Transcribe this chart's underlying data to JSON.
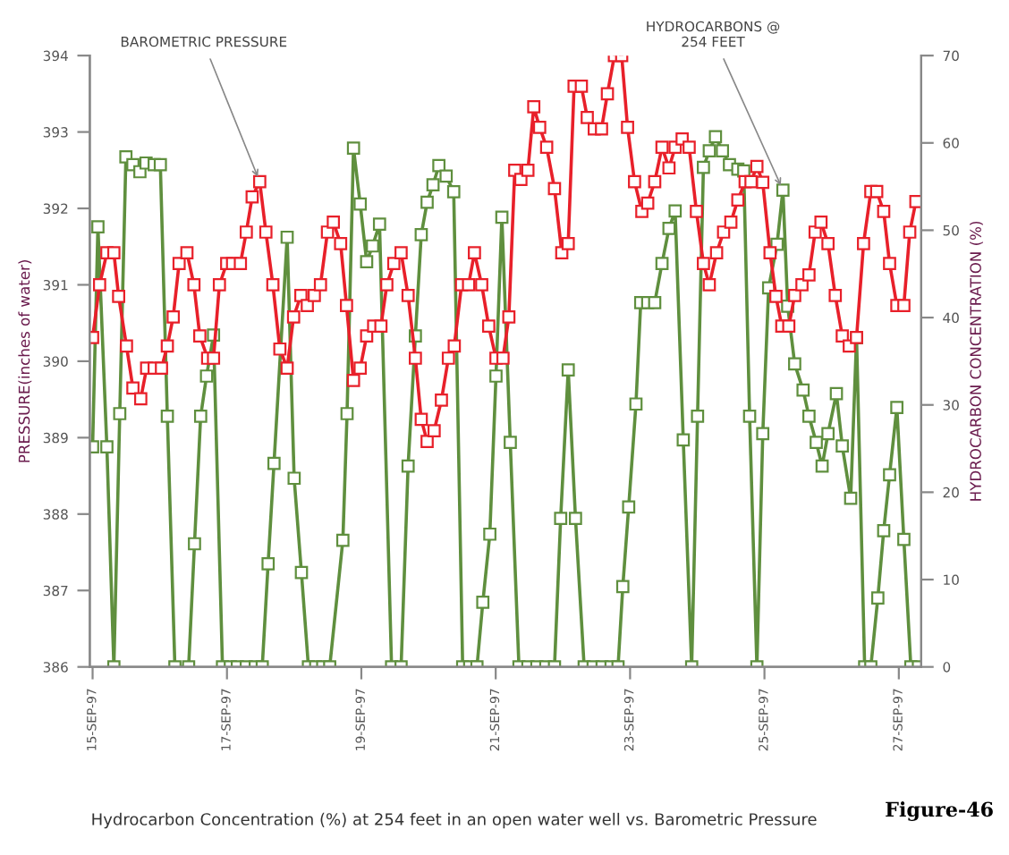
{
  "chart_data": {
    "type": "line",
    "ylabel": "PRESSURE(inches of water)",
    "y2label": "HYDROCARBON CONCENTRATION (%)",
    "xlim": [
      "1997-09-14T23:00",
      "1997-09-27T08:00"
    ],
    "xticks": [
      {
        "value": "1997-09-15",
        "label": "15-SEP-97"
      },
      {
        "value": "1997-09-17",
        "label": "17-SEP-97"
      },
      {
        "value": "1997-09-19",
        "label": "19-SEP-97"
      },
      {
        "value": "1997-09-21",
        "label": "21-SEP-97"
      },
      {
        "value": "1997-09-23",
        "label": "23-SEP-97"
      },
      {
        "value": "1997-09-25",
        "label": "25-SEP-97"
      },
      {
        "value": "1997-09-27",
        "label": "27-SEP-97"
      }
    ],
    "ylim": [
      386,
      394
    ],
    "yticks": [
      386,
      387,
      388,
      389,
      390,
      391,
      392,
      393,
      394
    ],
    "y2lim": [
      0,
      70
    ],
    "y2ticks": [
      0,
      10,
      20,
      30,
      40,
      50,
      60,
      70
    ],
    "grid": false,
    "legend": false,
    "marker": "square",
    "line_style": "solid",
    "series": [
      {
        "color": "#e8202a",
        "x": [
          "1997-09-15T00:00",
          "1997-09-15T02:30",
          "1997-09-15T05:06",
          "1997-09-15T07:36",
          "1997-09-15T09:18",
          "1997-09-15T12:06",
          "1997-09-15T14:24",
          "1997-09-15T17:12",
          "1997-09-15T19:18",
          "1997-09-15T22:00",
          "1997-09-16T00:36",
          "1997-09-16T02:42",
          "1997-09-16T04:48",
          "1997-09-16T06:54",
          "1997-09-16T09:42",
          "1997-09-16T12:12",
          "1997-09-16T14:18",
          "1997-09-16T17:06",
          "1997-09-16T19:12",
          "1997-09-16T21:18",
          "1997-09-16T23:54",
          "1997-09-17T02:00",
          "1997-09-17T04:48",
          "1997-09-17T06:54",
          "1997-09-17T09:00",
          "1997-09-17T11:42",
          "1997-09-17T13:54",
          "1997-09-17T16:24",
          "1997-09-17T18:54",
          "1997-09-17T21:30",
          "1997-09-17T23:48",
          "1997-09-18T02:24",
          "1997-09-18T04:42",
          "1997-09-18T07:12",
          "1997-09-18T09:24",
          "1997-09-18T11:54",
          "1997-09-18T14:00",
          "1997-09-18T16:36",
          "1997-09-18T18:42",
          "1997-09-18T21:12",
          "1997-09-18T23:36",
          "1997-09-19T01:54",
          "1997-09-19T04:24",
          "1997-09-19T07:00",
          "1997-09-19T09:06",
          "1997-09-19T11:36",
          "1997-09-19T14:12",
          "1997-09-19T16:42",
          "1997-09-19T19:18",
          "1997-09-19T21:24",
          "1997-09-19T23:30",
          "1997-09-20T02:00",
          "1997-09-20T04:36",
          "1997-09-20T07:06",
          "1997-09-20T09:12",
          "1997-09-20T11:48",
          "1997-09-20T14:18",
          "1997-09-20T16:24",
          "1997-09-20T19:00",
          "1997-09-20T21:30",
          "1997-09-21T00:06",
          "1997-09-21T02:36",
          "1997-09-21T04:42",
          "1997-09-21T06:48",
          "1997-09-21T09:00",
          "1997-09-21T11:30",
          "1997-09-21T13:36",
          "1997-09-21T15:42",
          "1997-09-21T18:12",
          "1997-09-21T21:00",
          "1997-09-21T23:36",
          "1997-09-22T01:54",
          "1997-09-22T04:00",
          "1997-09-22T06:36",
          "1997-09-22T08:42",
          "1997-09-22T11:12",
          "1997-09-22T13:48",
          "1997-09-22T15:54",
          "1997-09-22T18:24",
          "1997-09-22T21:00",
          "1997-09-22T23:06",
          "1997-09-23T01:36",
          "1997-09-23T04:12",
          "1997-09-23T06:18",
          "1997-09-23T08:48",
          "1997-09-23T11:24",
          "1997-09-23T13:54",
          "1997-09-23T16:06",
          "1997-09-23T18:36",
          "1997-09-23T21:06",
          "1997-09-23T23:42",
          "1997-09-24T02:12",
          "1997-09-24T04:18",
          "1997-09-24T06:54",
          "1997-09-24T09:24",
          "1997-09-24T12:00",
          "1997-09-24T14:30",
          "1997-09-24T17:06",
          "1997-09-24T19:12",
          "1997-09-24T21:18",
          "1997-09-24T23:24",
          "1997-09-25T02:00",
          "1997-09-25T04:06",
          "1997-09-25T06:12",
          "1997-09-25T08:42",
          "1997-09-25T10:48",
          "1997-09-25T13:24",
          "1997-09-25T15:54",
          "1997-09-25T18:06",
          "1997-09-25T20:12",
          "1997-09-25T22:42",
          "1997-09-26T01:18",
          "1997-09-26T03:48",
          "1997-09-26T06:18",
          "1997-09-26T08:54",
          "1997-09-26T11:24",
          "1997-09-26T14:00",
          "1997-09-26T16:06",
          "1997-09-26T18:36",
          "1997-09-26T20:42",
          "1997-09-26T23:18",
          "1997-09-27T01:48",
          "1997-09-27T03:54",
          "1997-09-27T06:06"
        ],
        "values": [
          390.31,
          391,
          391.42,
          391.42,
          390.85,
          390.2,
          389.65,
          389.51,
          389.91,
          389.91,
          389.91,
          390.2,
          390.58,
          391.28,
          391.42,
          391,
          390.33,
          390.04,
          390.04,
          391,
          391.28,
          391.28,
          391.28,
          391.69,
          392.15,
          392.35,
          391.69,
          391,
          390.16,
          389.91,
          390.58,
          390.86,
          390.73,
          390.86,
          391,
          391.69,
          391.82,
          391.54,
          390.73,
          389.75,
          389.91,
          390.33,
          390.46,
          390.46,
          391,
          391.28,
          391.42,
          390.86,
          390.04,
          389.24,
          388.95,
          389.09,
          389.49,
          390.04,
          390.2,
          391,
          391,
          391.42,
          391,
          390.46,
          390.04,
          390.04,
          390.58,
          392.5,
          392.38,
          392.5,
          393.33,
          393.06,
          392.8,
          392.26,
          391.42,
          391.54,
          393.6,
          393.6,
          393.19,
          393.04,
          393.04,
          393.5,
          394,
          394,
          393.06,
          392.35,
          391.96,
          392.07,
          392.35,
          392.8,
          392.53,
          392.8,
          392.91,
          392.8,
          391.96,
          391.28,
          391,
          391.42,
          391.69,
          391.82,
          392.11,
          392.35,
          392.35,
          392.55,
          392.34,
          391.42,
          390.85,
          390.46,
          390.46,
          390.86,
          391,
          391.13,
          391.69,
          391.82,
          391.54,
          390.86,
          390.33,
          390.2,
          390.31,
          391.54,
          392.22,
          392.22,
          391.96,
          391.28,
          390.73,
          390.73,
          391.69,
          392.09
        ]
      },
      {
        "color": "#5f8f3e",
        "axis": "y2",
        "x": [
          "1997-09-15T00:00",
          "1997-09-15T01:54",
          "1997-09-15T05:06",
          "1997-09-15T07:36",
          "1997-09-15T09:42",
          "1997-09-15T11:54",
          "1997-09-15T14:24",
          "1997-09-15T16:54",
          "1997-09-15T19:06",
          "1997-09-15T22:00",
          "1997-09-16T00:12",
          "1997-09-16T02:42",
          "1997-09-16T05:24",
          "1997-09-16T10:18",
          "1997-09-16T12:24",
          "1997-09-16T14:36",
          "1997-09-16T16:42",
          "1997-09-16T19:12",
          "1997-09-16T22:24",
          "1997-09-17T01:12",
          "1997-09-17T03:42",
          "1997-09-17T06:54",
          "1997-09-17T10:06",
          "1997-09-17T12:36",
          "1997-09-17T14:42",
          "1997-09-17T16:48",
          "1997-09-17T21:30",
          "1997-09-18T00:00",
          "1997-09-18T02:36",
          "1997-09-18T05:06",
          "1997-09-18T07:42",
          "1997-09-18T10:12",
          "1997-09-18T12:42",
          "1997-09-18T17:24",
          "1997-09-18T18:54",
          "1997-09-18T21:12",
          "1997-09-18T23:36",
          "1997-09-19T01:54",
          "1997-09-19T04:00",
          "1997-09-19T06:30",
          "1997-09-19T10:48",
          "1997-09-19T14:12",
          "1997-09-19T16:42",
          "1997-09-19T19:18",
          "1997-09-19T21:24",
          "1997-09-19T23:30",
          "1997-09-20T01:36",
          "1997-09-20T03:42",
          "1997-09-20T06:18",
          "1997-09-20T09:00",
          "1997-09-20T12:12",
          "1997-09-20T14:42",
          "1997-09-20T17:18",
          "1997-09-20T19:24",
          "1997-09-20T21:54",
          "1997-09-21T00:06",
          "1997-09-21T02:12",
          "1997-09-21T05:12",
          "1997-09-21T08:18",
          "1997-09-21T11:30",
          "1997-09-21T14:42",
          "1997-09-21T17:54",
          "1997-09-21T21:00",
          "1997-09-21T23:12",
          "1997-09-22T01:54",
          "1997-09-22T04:30",
          "1997-09-22T07:36",
          "1997-09-22T10:48",
          "1997-09-22T14:00",
          "1997-09-22T17:12",
          "1997-09-22T19:42",
          "1997-09-22T21:24",
          "1997-09-22T23:30",
          "1997-09-23T02:06",
          "1997-09-23T03:48",
          "1997-09-23T06:18",
          "1997-09-23T08:48",
          "1997-09-23T11:24",
          "1997-09-23T13:54",
          "1997-09-23T16:06",
          "1997-09-23T19:00",
          "1997-09-23T22:00",
          "1997-09-24T00:06",
          "1997-09-24T02:12",
          "1997-09-24T04:18",
          "1997-09-24T06:30",
          "1997-09-24T09:00",
          "1997-09-24T11:30",
          "1997-09-24T14:30",
          "1997-09-24T16:36",
          "1997-09-24T18:42",
          "1997-09-24T21:18",
          "1997-09-24T23:24",
          "1997-09-25T01:30",
          "1997-09-25T04:30",
          "1997-09-25T06:36",
          "1997-09-25T08:18",
          "1997-09-25T10:48",
          "1997-09-25T13:48",
          "1997-09-25T15:54",
          "1997-09-25T18:30",
          "1997-09-25T20:36",
          "1997-09-25T22:42",
          "1997-09-26T01:42",
          "1997-09-26T03:48",
          "1997-09-26T06:48",
          "1997-09-26T08:54",
          "1997-09-26T11:48",
          "1997-09-26T14:00",
          "1997-09-26T16:30",
          "1997-09-26T18:36",
          "1997-09-26T20:42",
          "1997-09-26T23:18",
          "1997-09-27T01:48",
          "1997-09-27T04:18",
          "1997-09-27T07:00"
        ],
        "values": [
          25.2,
          50.4,
          25.2,
          0,
          29,
          58.4,
          57.5,
          56.7,
          57.7,
          57.5,
          57.5,
          28.7,
          0,
          0,
          14.1,
          28.7,
          33.3,
          38,
          0,
          0,
          0,
          0,
          0,
          0,
          11.8,
          23.3,
          49.2,
          21.6,
          10.8,
          0,
          0,
          0,
          0,
          14.5,
          29,
          59.4,
          53,
          46.4,
          48.2,
          50.7,
          0,
          0,
          23,
          37.9,
          49.5,
          53.2,
          55.2,
          57.4,
          56.2,
          54.4,
          0,
          0,
          0,
          7.4,
          15.2,
          33.3,
          51.5,
          25.7,
          0,
          0,
          0,
          0,
          0,
          17,
          34,
          17,
          0,
          0,
          0,
          0,
          0,
          9.2,
          18.3,
          30.1,
          41.7,
          41.7,
          41.7,
          46.2,
          50.2,
          52.2,
          26,
          0,
          28.7,
          57.2,
          59.1,
          60.7,
          59.1,
          57.5,
          57,
          56.8,
          28.7,
          0,
          26.7,
          43.4,
          48.4,
          54.6,
          41.3,
          34.7,
          31.7,
          28.7,
          25.7,
          23,
          26.7,
          31.3,
          25.3,
          19.3,
          37.7,
          0,
          0,
          7.9,
          15.6,
          22,
          29.7,
          14.6,
          0,
          0
        ]
      }
    ],
    "annotations": [
      {
        "text": "BAROMETRIC PRESSURE",
        "x": "1997-09-17T11:42",
        "y": 392.35
      },
      {
        "text": "HYDROCARBONS @\n254 FEET",
        "x": "1997-09-25T06:36",
        "y": 392.24
      },
      "Hydrocarbon Concentration (%) at 254 feet in an open water well vs. Barometric Pressure",
      "Figure-46"
    ]
  }
}
